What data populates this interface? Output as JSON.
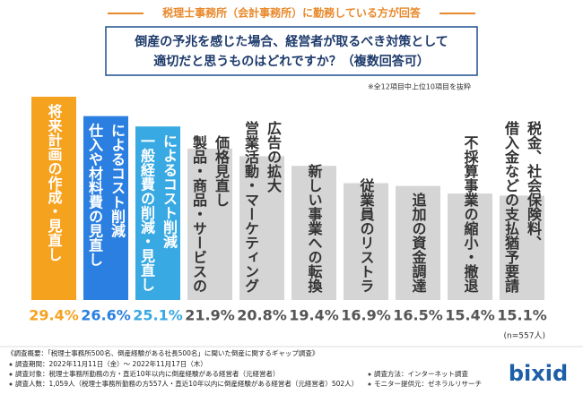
{
  "header": {
    "title": "税理士事務所（会計事務所）に勤務している方が回答",
    "question": [
      "倒産の予兆を感じた場合、経営者が取るべき対策として",
      "適切だと思うものはどれですか？（複数回答可）"
    ],
    "note": "※全12項目中上位10項目を抜粋"
  },
  "chart_data": {
    "type": "bar",
    "categories": [
      [
        "将来計画の作成・見直し"
      ],
      [
        "仕入や材料費の見直し",
        "によるコスト削減"
      ],
      [
        "一般経費の削減・見直し",
        "によるコスト削減"
      ],
      [
        "製品・商品・サービスの",
        "価格見直し"
      ],
      [
        "営業活動・マーケティング",
        "広告の拡大"
      ],
      [
        "新しい事業への転換"
      ],
      [
        "従業員のリストラ"
      ],
      [
        "追加の資金調達"
      ],
      [
        "不採算事業の縮小・撤退"
      ],
      [
        "借入金などの支払猶予要請",
        "税金、社会保険料、"
      ]
    ],
    "values": [
      29.4,
      26.6,
      25.1,
      21.9,
      20.8,
      19.4,
      16.9,
      16.5,
      15.4,
      15.1
    ],
    "value_labels": [
      "29.4%",
      "26.6%",
      "25.1%",
      "21.9%",
      "20.8%",
      "19.4%",
      "16.9%",
      "16.5%",
      "15.4%",
      "15.1%"
    ],
    "colors": [
      "#f5a21f",
      "#2a7fe0",
      "#38a9e2",
      "#d5d5d5",
      "#d5d5d5",
      "#d5d5d5",
      "#d5d5d5",
      "#d5d5d5",
      "#d5d5d5",
      "#d5d5d5"
    ],
    "n_label": "(n=557人)"
  },
  "footer": {
    "title": "《調査概要：「税理士事務所500名、倒産経験がある社長500名」に聞いた倒産に関するギャップ調査》",
    "items": [
      "調査期間：2022年11月11日（金）～ 2022年11月17日（木）",
      "調査対象：税理士事務所勤務の方・直近10年以内に倒産経験がある経営者（元経営者）",
      "調査人数：1,059人（税理士事務所勤務の方557人・直近10年以内に倒産経験がある経営者（元経営者）502人）"
    ],
    "items_right": [
      "調査方法：インターネット調査",
      "モニター提供元：ゼネラルリサーチ"
    ],
    "logo": "bixid"
  }
}
